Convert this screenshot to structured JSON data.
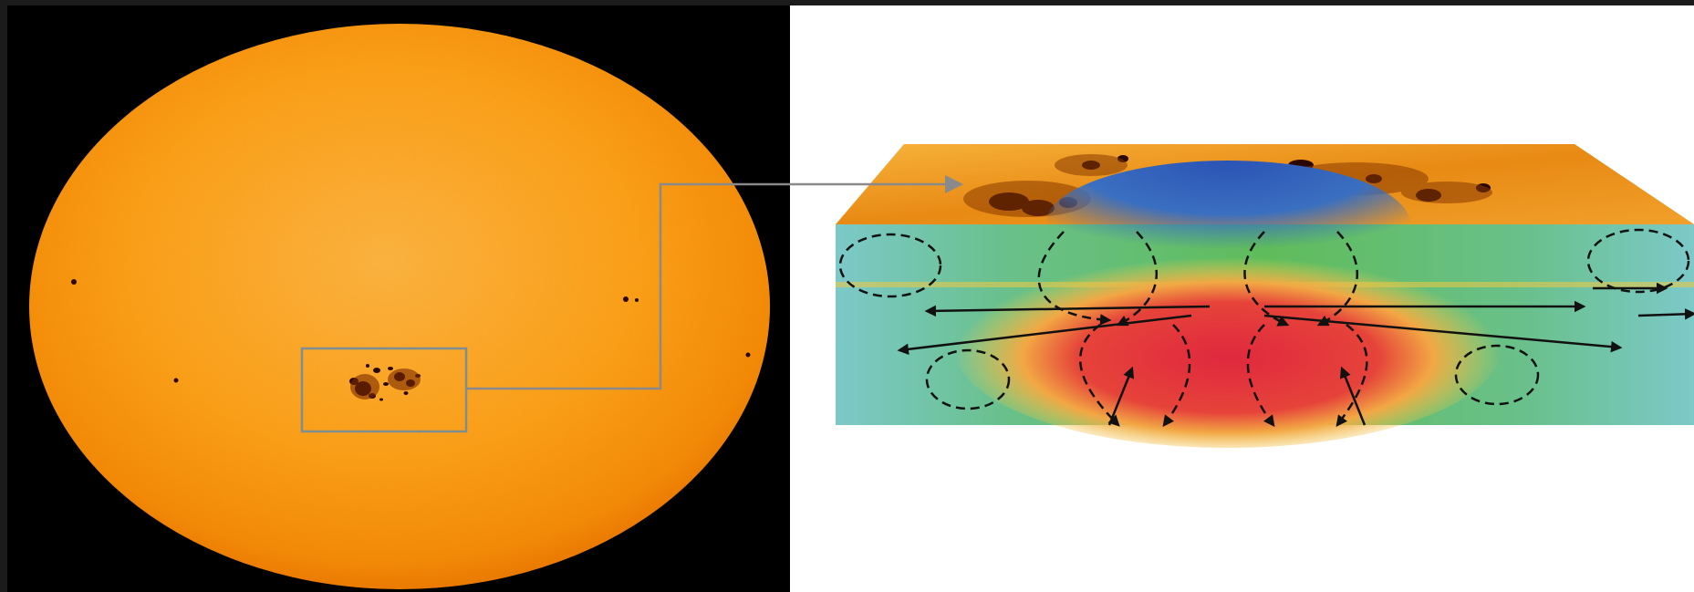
{
  "diagram": {
    "sun_panel": {
      "description_icon": "sun-disk-icon",
      "background_color": "#000000",
      "sun_colors": {
        "center": "#ffb340",
        "mid": "#fea018",
        "limb": "#f07a00"
      },
      "spot_color": "#2a0800",
      "credit_text": ""
    },
    "zoom_callout": {
      "stroke_color": "#7f8e90",
      "arrow_color": "#8a8a8a"
    },
    "cross_section": {
      "surface_colors": [
        "#f5a623",
        "#e07a10",
        "#2a0a00"
      ],
      "interior_colors": {
        "hot": "#e2323f",
        "warm": "#f7d04a",
        "cool": "#3fae55",
        "edge": "#7cc7c4",
        "cold": "#2e57b6"
      },
      "flow_arrow_color": "#1a1a1a"
    }
  }
}
